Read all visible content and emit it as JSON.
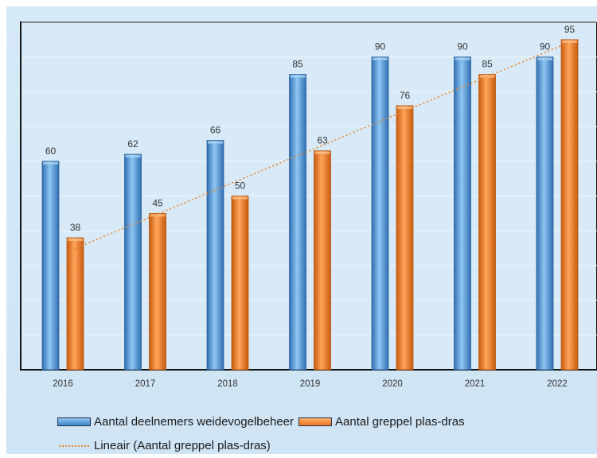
{
  "chart_data": {
    "type": "bar",
    "title": "",
    "xlabel": "",
    "ylabel": "",
    "categories": [
      "2016",
      "2017",
      "2018",
      "2019",
      "2020",
      "2021",
      "2022"
    ],
    "ylim": [
      0,
      100
    ],
    "grid": true,
    "legend_position": "bottom",
    "series": [
      {
        "name": "Aantal deelnemers weidevogelbeheer",
        "values": [
          60,
          62,
          66,
          85,
          90,
          90,
          90
        ],
        "color": "#4a8fd0"
      },
      {
        "name": "Aantal greppel plas-dras",
        "values": [
          38,
          45,
          50,
          63,
          76,
          85,
          95
        ],
        "color": "#f07c22"
      }
    ],
    "trendline": {
      "name": "Lineair (Aantal greppel plas-dras)",
      "of_series": "Aantal greppel plas-dras",
      "type": "linear",
      "color": "#e8862f",
      "style": "dotted"
    },
    "data_labels": true
  }
}
